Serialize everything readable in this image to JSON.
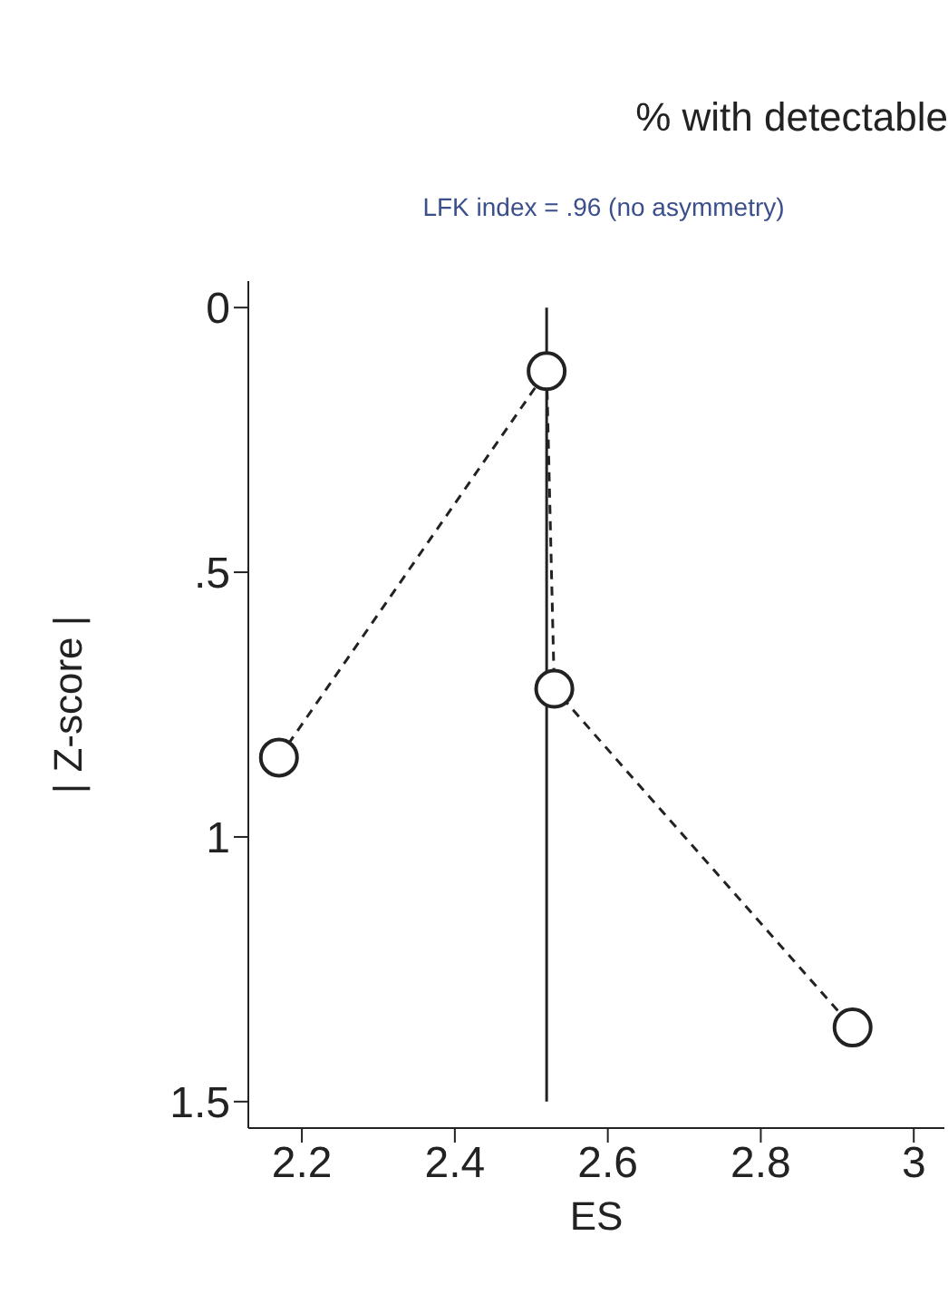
{
  "chart_data": {
    "type": "line",
    "title": "% with detectable",
    "subtitle": "LFK index = .96 (no asymmetry)",
    "xlabel": "ES",
    "ylabel": "| Z-score |",
    "xlim": [
      2.13,
      3.04
    ],
    "xticks": [
      2.2,
      2.4,
      2.6,
      2.8,
      3
    ],
    "ylim": [
      1.55,
      -0.05
    ],
    "yticks": [
      {
        "value": 0,
        "label": "0"
      },
      {
        "value": 0.5,
        "label": ".5"
      },
      {
        "value": 1,
        "label": "1"
      },
      {
        "value": 1.5,
        "label": "1.5"
      }
    ],
    "series": [
      {
        "color": "#222222",
        "x": [
          2.17,
          2.52,
          2.53,
          2.92
        ],
        "values": [
          0.85,
          0.12,
          0.72,
          1.36
        ],
        "marker": "circle",
        "line_style": "dashed"
      },
      {
        "color": "#222222",
        "x": [
          2.52,
          2.52
        ],
        "values": [
          0,
          1.5
        ],
        "marker": "none",
        "line_style": "solid"
      }
    ]
  }
}
